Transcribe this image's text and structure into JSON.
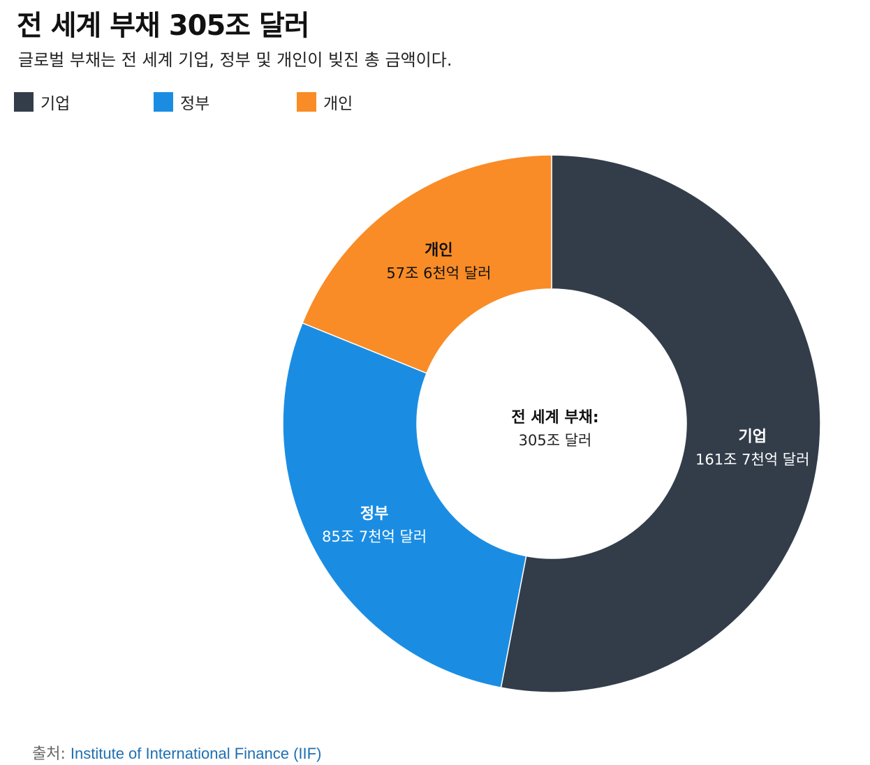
{
  "title": "전 세계 부채 305조 달러",
  "subtitle": "글로벌 부채는 전 세계 기업, 정부 및 개인이 빚진 총 금액이다.",
  "legend": [
    {
      "label": "기업",
      "color": "#333d4a"
    },
    {
      "label": "정부",
      "color": "#1a8de3"
    },
    {
      "label": "개인",
      "color": "#f98c26"
    }
  ],
  "center": {
    "title": "전 세계 부채:",
    "value": "305조 달러"
  },
  "source": {
    "label": "출처:",
    "link_text": "Institute of International Finance (IIF)"
  },
  "chart_data": {
    "type": "pie",
    "donut": true,
    "categories": [
      "기업",
      "정부",
      "개인"
    ],
    "values": [
      161.7,
      85.7,
      57.6
    ],
    "value_labels": [
      "161조 7천억 달러",
      "85조 7천억 달러",
      "57조 6천억 달러"
    ],
    "colors": [
      "#333d4a",
      "#1a8de3",
      "#f98c26"
    ],
    "legend_position": "top-left"
  }
}
